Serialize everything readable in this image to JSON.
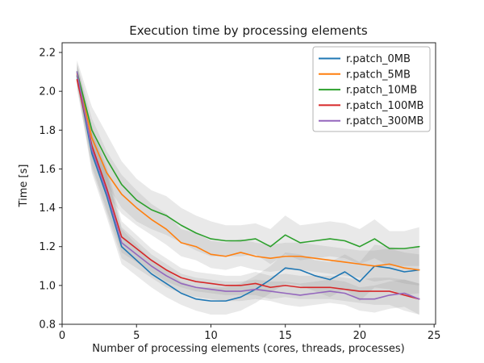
{
  "chart_data": {
    "type": "line",
    "title": "Execution time by processing elements",
    "xlabel": "Number of processing elements (cores, threads, processes)",
    "ylabel": "Time [s]",
    "x_ticks": [
      0,
      5,
      10,
      15,
      20,
      25
    ],
    "y_ticks": [
      0.8,
      1.0,
      1.2,
      1.4,
      1.6,
      1.8,
      2.0,
      2.2
    ],
    "xlim": [
      0,
      25.1
    ],
    "ylim": [
      0.8,
      2.25
    ],
    "grid": false,
    "legend_position": "upper right",
    "band_color": "#999999",
    "band_opacity": 0.22,
    "axis_color": "#262626",
    "x": [
      1,
      2,
      3,
      4,
      5,
      6,
      7,
      8,
      9,
      10,
      11,
      12,
      13,
      14,
      15,
      16,
      17,
      18,
      19,
      20,
      21,
      22,
      23,
      24
    ],
    "series": [
      {
        "name": "r.patch_0MB",
        "color": "#1f77b4",
        "values": [
          2.08,
          1.68,
          1.46,
          1.2,
          1.13,
          1.06,
          1.01,
          0.96,
          0.93,
          0.92,
          0.92,
          0.94,
          0.98,
          1.03,
          1.09,
          1.08,
          1.05,
          1.03,
          1.07,
          1.02,
          1.1,
          1.09,
          1.07,
          1.08
        ],
        "band_half_width": [
          0.05,
          0.1,
          0.11,
          0.09,
          0.08,
          0.07,
          0.07,
          0.06,
          0.06,
          0.07,
          0.07,
          0.07,
          0.07,
          0.07,
          0.08,
          0.08,
          0.08,
          0.09,
          0.09,
          0.1,
          0.11,
          0.11,
          0.12,
          0.12
        ]
      },
      {
        "name": "r.patch_5MB",
        "color": "#ff7f0e",
        "values": [
          2.09,
          1.76,
          1.58,
          1.47,
          1.4,
          1.34,
          1.29,
          1.22,
          1.2,
          1.16,
          1.15,
          1.17,
          1.15,
          1.14,
          1.15,
          1.15,
          1.14,
          1.13,
          1.12,
          1.11,
          1.1,
          1.11,
          1.09,
          1.08
        ],
        "band_half_width": [
          0.05,
          0.1,
          0.11,
          0.1,
          0.09,
          0.08,
          0.08,
          0.07,
          0.07,
          0.07,
          0.07,
          0.07,
          0.07,
          0.07,
          0.07,
          0.07,
          0.07,
          0.07,
          0.07,
          0.07,
          0.08,
          0.08,
          0.08,
          0.08
        ]
      },
      {
        "name": "r.patch_10MB",
        "color": "#2ca02c",
        "values": [
          2.1,
          1.8,
          1.65,
          1.52,
          1.44,
          1.39,
          1.36,
          1.31,
          1.27,
          1.24,
          1.23,
          1.23,
          1.24,
          1.2,
          1.26,
          1.22,
          1.23,
          1.24,
          1.23,
          1.2,
          1.24,
          1.19,
          1.19,
          1.2
        ],
        "band_half_width": [
          0.06,
          0.12,
          0.13,
          0.12,
          0.11,
          0.1,
          0.1,
          0.09,
          0.09,
          0.09,
          0.08,
          0.08,
          0.08,
          0.09,
          0.1,
          0.09,
          0.09,
          0.09,
          0.09,
          0.09,
          0.1,
          0.09,
          0.09,
          0.1
        ]
      },
      {
        "name": "r.patch_100MB",
        "color": "#d62728",
        "values": [
          2.06,
          1.72,
          1.5,
          1.25,
          1.19,
          1.13,
          1.08,
          1.04,
          1.02,
          1.01,
          1.0,
          1.0,
          1.01,
          0.99,
          1.0,
          0.99,
          0.99,
          0.99,
          0.98,
          0.97,
          0.97,
          0.97,
          0.95,
          0.93
        ],
        "band_half_width": [
          0.05,
          0.1,
          0.11,
          0.08,
          0.07,
          0.06,
          0.06,
          0.05,
          0.05,
          0.05,
          0.05,
          0.05,
          0.06,
          0.06,
          0.06,
          0.06,
          0.06,
          0.06,
          0.06,
          0.06,
          0.07,
          0.07,
          0.08,
          0.08
        ]
      },
      {
        "name": "r.patch_300MB",
        "color": "#9467bd",
        "values": [
          2.1,
          1.7,
          1.48,
          1.22,
          1.16,
          1.1,
          1.05,
          1.01,
          0.99,
          0.98,
          0.97,
          0.97,
          0.98,
          0.97,
          0.96,
          0.95,
          0.96,
          0.97,
          0.96,
          0.93,
          0.93,
          0.95,
          0.96,
          0.93
        ],
        "band_half_width": [
          0.05,
          0.1,
          0.11,
          0.08,
          0.07,
          0.06,
          0.06,
          0.05,
          0.05,
          0.05,
          0.05,
          0.05,
          0.05,
          0.05,
          0.06,
          0.06,
          0.06,
          0.06,
          0.06,
          0.06,
          0.07,
          0.07,
          0.07,
          0.08
        ]
      }
    ]
  }
}
